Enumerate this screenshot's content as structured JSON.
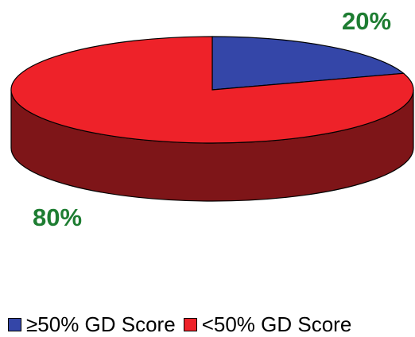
{
  "chart_data": {
    "type": "pie",
    "categories": [
      "≥50% GD Score",
      "<50% GD Score"
    ],
    "values": [
      20,
      80
    ],
    "data_labels": [
      "20%",
      "80%"
    ],
    "colors": {
      "top": [
        "#3446A8",
        "#EE2229"
      ],
      "side": [
        "#27337A",
        "#7E1518"
      ],
      "label": "#1E7D32"
    },
    "legend_position": "bottom",
    "three_d": true
  }
}
